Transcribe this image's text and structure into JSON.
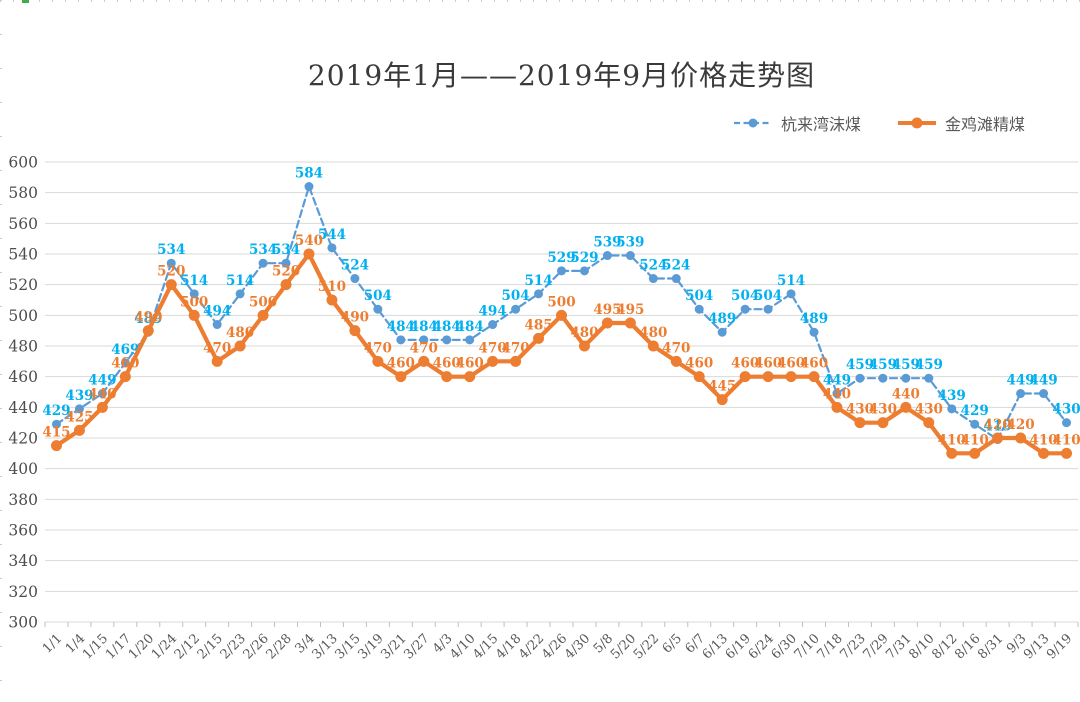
{
  "page": {
    "colors": {
      "background": "#FFFFFF",
      "gridline": "#D9D9D9",
      "axis_tick": "#BFBFBF",
      "axis_text": "#595959",
      "title_text": "#3A3A3A",
      "edge_tick": "#CCCCCC",
      "edge_green_tick": "#3FAE49"
    }
  },
  "chart_data": {
    "type": "line",
    "title": "2019年1月——2019年9月价格走势图",
    "grid": true,
    "legend_position": "top-right",
    "xlabel": "",
    "ylabel": "",
    "ylim": [
      300,
      600
    ],
    "y_axis": {
      "min": 300,
      "max": 600,
      "step": 20,
      "ticks": [
        600,
        580,
        560,
        540,
        520,
        500,
        480,
        460,
        440,
        420,
        400,
        380,
        360,
        340,
        320,
        300
      ]
    },
    "categories": [
      "1/1",
      "1/4",
      "1/15",
      "1/17",
      "1/20",
      "1/24",
      "2/12",
      "2/15",
      "2/23",
      "2/26",
      "2/28",
      "3/4",
      "3/13",
      "3/15",
      "3/19",
      "3/21",
      "3/27",
      "4/3",
      "4/10",
      "4/15",
      "4/18",
      "4/22",
      "4/26",
      "4/30",
      "5/8",
      "5/20",
      "5/22",
      "6/5",
      "6/7",
      "6/13",
      "6/19",
      "6/24",
      "6/30",
      "7/10",
      "7/18",
      "7/23",
      "7/29",
      "7/31",
      "8/10",
      "8/12",
      "8/16",
      "8/31",
      "9/3",
      "9/13",
      "9/19"
    ],
    "series": [
      {
        "name": "杭来湾沫煤",
        "color": "#5B9BD5",
        "line_style": "dashed",
        "marker": "circle",
        "data_label_color": "#00B0F0",
        "values": [
          429,
          439,
          449,
          469,
          489,
          534,
          514,
          494,
          514,
          534,
          534,
          584,
          544,
          524,
          504,
          484,
          484,
          484,
          484,
          494,
          504,
          514,
          529,
          529,
          539,
          539,
          524,
          524,
          504,
          489,
          504,
          504,
          514,
          489,
          449,
          459,
          459,
          459,
          459,
          439,
          429,
          419,
          449,
          449,
          430
        ]
      },
      {
        "name": "金鸡滩精煤",
        "color": "#ED7D31",
        "line_style": "solid",
        "marker": "circle",
        "data_label_color": "#ED7D31",
        "values": [
          415,
          425,
          440,
          460,
          490,
          520,
          500,
          470,
          480,
          500,
          520,
          540,
          510,
          490,
          470,
          460,
          470,
          460,
          460,
          470,
          470,
          485,
          500,
          480,
          495,
          495,
          480,
          470,
          460,
          445,
          460,
          460,
          460,
          460,
          440,
          430,
          430,
          440,
          430,
          410,
          410,
          420,
          420,
          410,
          410
        ]
      }
    ]
  }
}
